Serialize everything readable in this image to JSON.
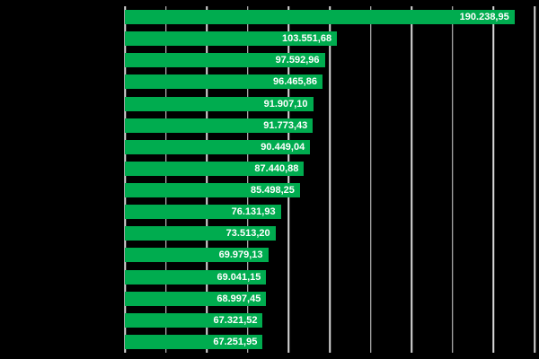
{
  "chart_data": {
    "type": "bar",
    "orientation": "horizontal",
    "title": "",
    "xlabel": "",
    "ylabel": "",
    "categories": [
      "",
      "",
      "",
      "",
      "",
      "",
      "",
      "",
      "",
      "",
      "",
      "",
      "",
      "",
      "",
      ""
    ],
    "values": [
      190238.95,
      103551.68,
      97592.96,
      96465.86,
      91907.1,
      91773.43,
      90449.04,
      87440.88,
      85498.25,
      76131.93,
      73513.2,
      69979.13,
      69041.15,
      68997.45,
      67321.52,
      67251.95
    ],
    "value_labels": [
      "190.238,95",
      "103.551,68",
      "97.592,96",
      "96.465,86",
      "91.907,10",
      "91.773,43",
      "90.449,04",
      "87.440,88",
      "85.498,25",
      "76.131,93",
      "73.513,20",
      "69.979,13",
      "69.041,15",
      "68.997,45",
      "67.321,52",
      "67.251,95"
    ],
    "xlim": [
      0,
      200000
    ],
    "gridline_interval": 20000,
    "grid": true,
    "legend": false,
    "data_labels_position": "inside-end",
    "colors": {
      "background": "#000000",
      "bar": "#00AC4F",
      "gridline": "#D9D9D9",
      "value_label": "#FFFFFF"
    }
  }
}
